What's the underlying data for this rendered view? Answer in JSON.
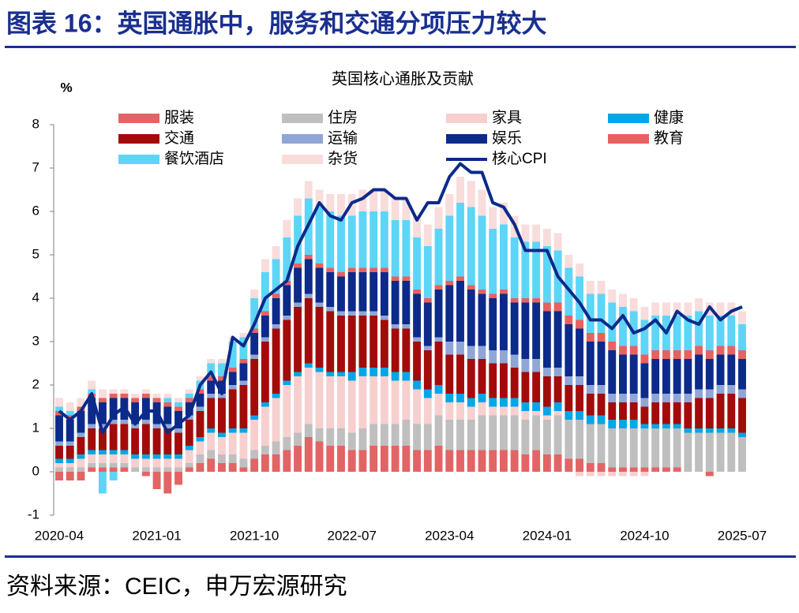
{
  "header": {
    "title": "图表 16：英国通胀中，服务和交通分项压力较大"
  },
  "footer": {
    "source": "资料来源：CEIC，申万宏源研究"
  },
  "chart_data": {
    "type": "bar",
    "stacked": true,
    "title": "英国核心通胀及贡献",
    "y_label": "%",
    "categories": [
      "2020-04",
      null,
      null,
      null,
      null,
      null,
      null,
      null,
      null,
      "2021-01",
      null,
      null,
      null,
      null,
      null,
      null,
      null,
      null,
      "2021-10",
      null,
      null,
      null,
      null,
      null,
      null,
      null,
      null,
      "2022-07",
      null,
      null,
      null,
      null,
      null,
      null,
      null,
      null,
      "2023-04",
      null,
      null,
      null,
      null,
      null,
      null,
      null,
      null,
      "2024-01",
      null,
      null,
      null,
      null,
      null,
      null,
      null,
      null,
      "2024-10",
      null,
      null,
      null,
      null,
      null,
      null,
      null,
      null,
      "2025-07"
    ],
    "ylim": [
      -1,
      8
    ],
    "yticks": [
      -1,
      0,
      1,
      2,
      3,
      4,
      5,
      6,
      7,
      8
    ],
    "series": [
      {
        "name": "服装",
        "color": "#e36464",
        "values": [
          -0.2,
          -0.2,
          -0.2,
          0.1,
          0.1,
          0.1,
          0.1,
          0.0,
          -0.1,
          -0.4,
          -0.5,
          -0.3,
          0.1,
          0.2,
          0.3,
          0.2,
          0.2,
          0.1,
          0.3,
          0.4,
          0.4,
          0.5,
          0.6,
          0.8,
          0.7,
          0.6,
          0.6,
          0.5,
          0.5,
          0.6,
          0.6,
          0.6,
          0.6,
          0.5,
          0.5,
          0.6,
          0.5,
          0.5,
          0.5,
          0.5,
          0.5,
          0.5,
          0.5,
          0.4,
          0.5,
          0.4,
          0.4,
          0.3,
          0.3,
          0.2,
          0.2,
          0.1,
          0.1,
          0.1,
          0.1,
          0.1,
          0.1,
          0.1,
          0.0,
          0.0,
          -0.1,
          0.0,
          0.0,
          0.0
        ]
      },
      {
        "name": "住房",
        "color": "#bfbfbf",
        "values": [
          0.1,
          0.1,
          0.1,
          0.1,
          0.1,
          0.1,
          0.1,
          0.1,
          0.1,
          0.1,
          0.1,
          0.1,
          0.1,
          0.2,
          0.2,
          0.2,
          0.2,
          0.2,
          0.2,
          0.2,
          0.3,
          0.3,
          0.3,
          0.3,
          0.3,
          0.4,
          0.4,
          0.4,
          0.5,
          0.5,
          0.5,
          0.5,
          0.6,
          0.6,
          0.6,
          0.7,
          0.7,
          0.7,
          0.7,
          0.8,
          0.8,
          0.8,
          0.8,
          0.8,
          0.8,
          0.8,
          0.9,
          0.9,
          0.9,
          0.9,
          0.9,
          0.9,
          0.9,
          0.9,
          0.9,
          0.9,
          0.9,
          0.9,
          0.9,
          0.9,
          0.9,
          0.9,
          0.9,
          0.8
        ]
      },
      {
        "name": "家具",
        "color": "#f7cfcf",
        "values": [
          0.1,
          0.1,
          0.2,
          0.2,
          0.2,
          0.2,
          0.2,
          0.2,
          0.2,
          0.2,
          0.2,
          0.2,
          0.3,
          0.3,
          0.4,
          0.4,
          0.5,
          0.6,
          0.7,
          0.9,
          1.0,
          1.2,
          1.3,
          1.3,
          1.3,
          1.2,
          1.2,
          1.2,
          1.2,
          1.1,
          1.1,
          1.0,
          0.9,
          0.8,
          0.6,
          0.5,
          0.4,
          0.4,
          0.3,
          0.3,
          0.2,
          0.2,
          0.2,
          0.2,
          0.1,
          0.1,
          0.1,
          0.0,
          -0.1,
          -0.1,
          -0.1,
          -0.1,
          -0.1,
          -0.1,
          -0.1,
          0.0,
          0.0,
          0.0,
          0.0,
          0.0,
          0.0,
          0.0,
          0.0,
          0.0
        ]
      },
      {
        "name": "健康",
        "color": "#00a6e6",
        "values": [
          0.1,
          0.1,
          0.1,
          0.1,
          0.1,
          0.1,
          0.1,
          0.1,
          0.1,
          0.1,
          0.1,
          0.1,
          0.1,
          0.1,
          0.1,
          0.1,
          0.1,
          0.1,
          0.1,
          0.1,
          0.1,
          0.1,
          0.1,
          0.1,
          0.1,
          0.1,
          0.1,
          0.2,
          0.2,
          0.2,
          0.2,
          0.2,
          0.2,
          0.2,
          0.2,
          0.2,
          0.2,
          0.2,
          0.2,
          0.2,
          0.2,
          0.2,
          0.2,
          0.2,
          0.2,
          0.2,
          0.2,
          0.2,
          0.2,
          0.2,
          0.2,
          0.2,
          0.2,
          0.2,
          0.1,
          0.1,
          0.1,
          0.1,
          0.1,
          0.1,
          0.1,
          0.1,
          0.1,
          0.1
        ]
      },
      {
        "name": "交通",
        "color": "#a30b0b",
        "values": [
          0.3,
          0.3,
          0.4,
          0.5,
          0.5,
          0.6,
          0.6,
          0.6,
          0.7,
          0.6,
          0.6,
          0.5,
          0.6,
          0.6,
          0.7,
          0.8,
          0.9,
          1.0,
          1.3,
          1.4,
          1.5,
          1.4,
          1.5,
          1.5,
          1.4,
          1.4,
          1.3,
          1.3,
          1.2,
          1.2,
          1.1,
          1.0,
          1.0,
          0.9,
          0.9,
          1.0,
          0.9,
          0.9,
          0.9,
          0.8,
          0.8,
          0.8,
          0.7,
          0.7,
          0.7,
          0.7,
          0.6,
          0.6,
          0.6,
          0.5,
          0.5,
          0.4,
          0.4,
          0.4,
          0.4,
          0.5,
          0.5,
          0.5,
          0.6,
          0.7,
          0.7,
          0.8,
          0.8,
          0.8
        ]
      },
      {
        "name": "运输",
        "color": "#8fa6d6",
        "values": [
          0.1,
          0.1,
          0.1,
          0.1,
          0.1,
          0.1,
          0.1,
          0.1,
          0.1,
          0.1,
          0.1,
          0.1,
          0.1,
          0.1,
          0.1,
          0.1,
          0.1,
          0.1,
          0.1,
          0.1,
          0.1,
          0.1,
          0.1,
          0.1,
          0.1,
          0.1,
          0.1,
          0.1,
          0.1,
          0.1,
          0.1,
          0.1,
          0.1,
          0.1,
          0.1,
          0.1,
          0.3,
          0.3,
          0.3,
          0.3,
          0.3,
          0.3,
          0.3,
          0.3,
          0.3,
          0.2,
          0.2,
          0.2,
          0.2,
          0.2,
          0.2,
          0.2,
          0.2,
          0.2,
          0.2,
          0.2,
          0.2,
          0.2,
          0.2,
          0.2,
          0.2,
          0.2,
          0.2,
          0.2
        ]
      },
      {
        "name": "娱乐",
        "color": "#0b2a8a",
        "values": [
          0.6,
          0.5,
          0.5,
          0.6,
          0.5,
          0.5,
          0.5,
          0.5,
          0.5,
          0.5,
          0.4,
          0.4,
          0.3,
          0.3,
          0.3,
          0.3,
          0.3,
          0.4,
          0.5,
          0.5,
          0.6,
          0.7,
          0.8,
          0.8,
          0.8,
          0.8,
          0.8,
          0.9,
          0.9,
          0.9,
          1.0,
          1.0,
          1.0,
          1.0,
          1.0,
          1.1,
          1.3,
          1.4,
          1.3,
          1.2,
          1.2,
          1.3,
          1.2,
          1.3,
          1.3,
          1.3,
          1.3,
          1.2,
          1.1,
          1.0,
          1.0,
          1.0,
          0.9,
          0.9,
          0.8,
          0.8,
          0.8,
          0.8,
          0.8,
          0.8,
          0.7,
          0.7,
          0.7,
          0.7
        ]
      },
      {
        "name": "教育",
        "color": "#e8615f",
        "values": [
          0.1,
          0.1,
          0.1,
          0.1,
          0.1,
          0.1,
          0.1,
          0.1,
          0.1,
          0.1,
          0.1,
          0.1,
          0.1,
          0.1,
          0.1,
          0.1,
          0.1,
          0.1,
          0.1,
          0.1,
          0.1,
          0.1,
          0.1,
          0.1,
          0.1,
          0.1,
          0.1,
          0.1,
          0.1,
          0.1,
          0.1,
          0.1,
          0.1,
          0.1,
          0.1,
          0.1,
          0.1,
          0.1,
          0.1,
          0.1,
          0.1,
          0.1,
          0.1,
          0.1,
          0.1,
          0.2,
          0.2,
          0.2,
          0.2,
          0.2,
          0.2,
          0.2,
          0.2,
          0.2,
          0.2,
          0.2,
          0.2,
          0.2,
          0.2,
          0.2,
          0.2,
          0.2,
          0.2,
          0.2
        ]
      },
      {
        "name": "餐饮酒店",
        "color": "#5dd5f7",
        "values": [
          0.1,
          0.1,
          0.0,
          0.1,
          -0.5,
          -0.2,
          0.0,
          0.0,
          0.0,
          0.0,
          0.1,
          0.1,
          0.1,
          0.2,
          0.3,
          0.3,
          0.6,
          0.5,
          0.7,
          0.9,
          0.8,
          1.0,
          1.1,
          1.3,
          1.3,
          1.3,
          1.3,
          1.2,
          1.3,
          1.3,
          1.3,
          1.3,
          1.3,
          1.2,
          1.2,
          1.3,
          1.5,
          1.7,
          1.8,
          1.7,
          1.5,
          1.5,
          1.4,
          1.3,
          1.3,
          1.3,
          1.2,
          1.1,
          1.0,
          0.9,
          0.9,
          0.9,
          0.9,
          0.8,
          0.8,
          0.8,
          0.8,
          0.8,
          0.8,
          0.8,
          0.8,
          0.7,
          0.7,
          0.6
        ]
      },
      {
        "name": "杂货",
        "color": "#f9dcdc",
        "values": [
          0.2,
          0.2,
          0.2,
          0.2,
          0.2,
          0.1,
          0.1,
          0.1,
          0.1,
          0.1,
          0.1,
          0.1,
          0.1,
          0.1,
          0.1,
          0.1,
          0.1,
          0.1,
          0.2,
          0.3,
          0.3,
          0.4,
          0.4,
          0.4,
          0.4,
          0.4,
          0.5,
          0.5,
          0.5,
          0.5,
          0.5,
          0.5,
          0.5,
          0.5,
          0.5,
          0.5,
          0.5,
          0.6,
          0.6,
          0.6,
          0.5,
          0.5,
          0.5,
          0.4,
          0.4,
          0.4,
          0.4,
          0.3,
          0.3,
          0.3,
          0.3,
          0.3,
          0.3,
          0.3,
          0.3,
          0.3,
          0.3,
          0.3,
          0.3,
          0.3,
          0.3,
          0.3,
          0.3,
          0.3
        ]
      },
      {
        "name": "核心CPI",
        "color": "#0b2a8a",
        "type": "line",
        "values": [
          1.4,
          1.2,
          1.4,
          1.8,
          0.9,
          1.3,
          1.5,
          1.1,
          1.4,
          1.4,
          0.9,
          1.1,
          1.3,
          2.0,
          2.3,
          1.8,
          3.1,
          2.9,
          3.4,
          4.0,
          4.2,
          4.4,
          5.2,
          5.7,
          6.2,
          5.9,
          5.8,
          6.2,
          6.3,
          6.5,
          6.5,
          6.3,
          6.3,
          5.8,
          6.2,
          6.2,
          6.8,
          7.1,
          6.9,
          6.9,
          6.2,
          6.1,
          5.7,
          5.1,
          5.1,
          5.1,
          4.5,
          4.2,
          3.9,
          3.5,
          3.5,
          3.3,
          3.6,
          3.2,
          3.3,
          3.5,
          3.2,
          3.7,
          3.5,
          3.4,
          3.8,
          3.5,
          3.7,
          3.8
        ]
      }
    ]
  }
}
